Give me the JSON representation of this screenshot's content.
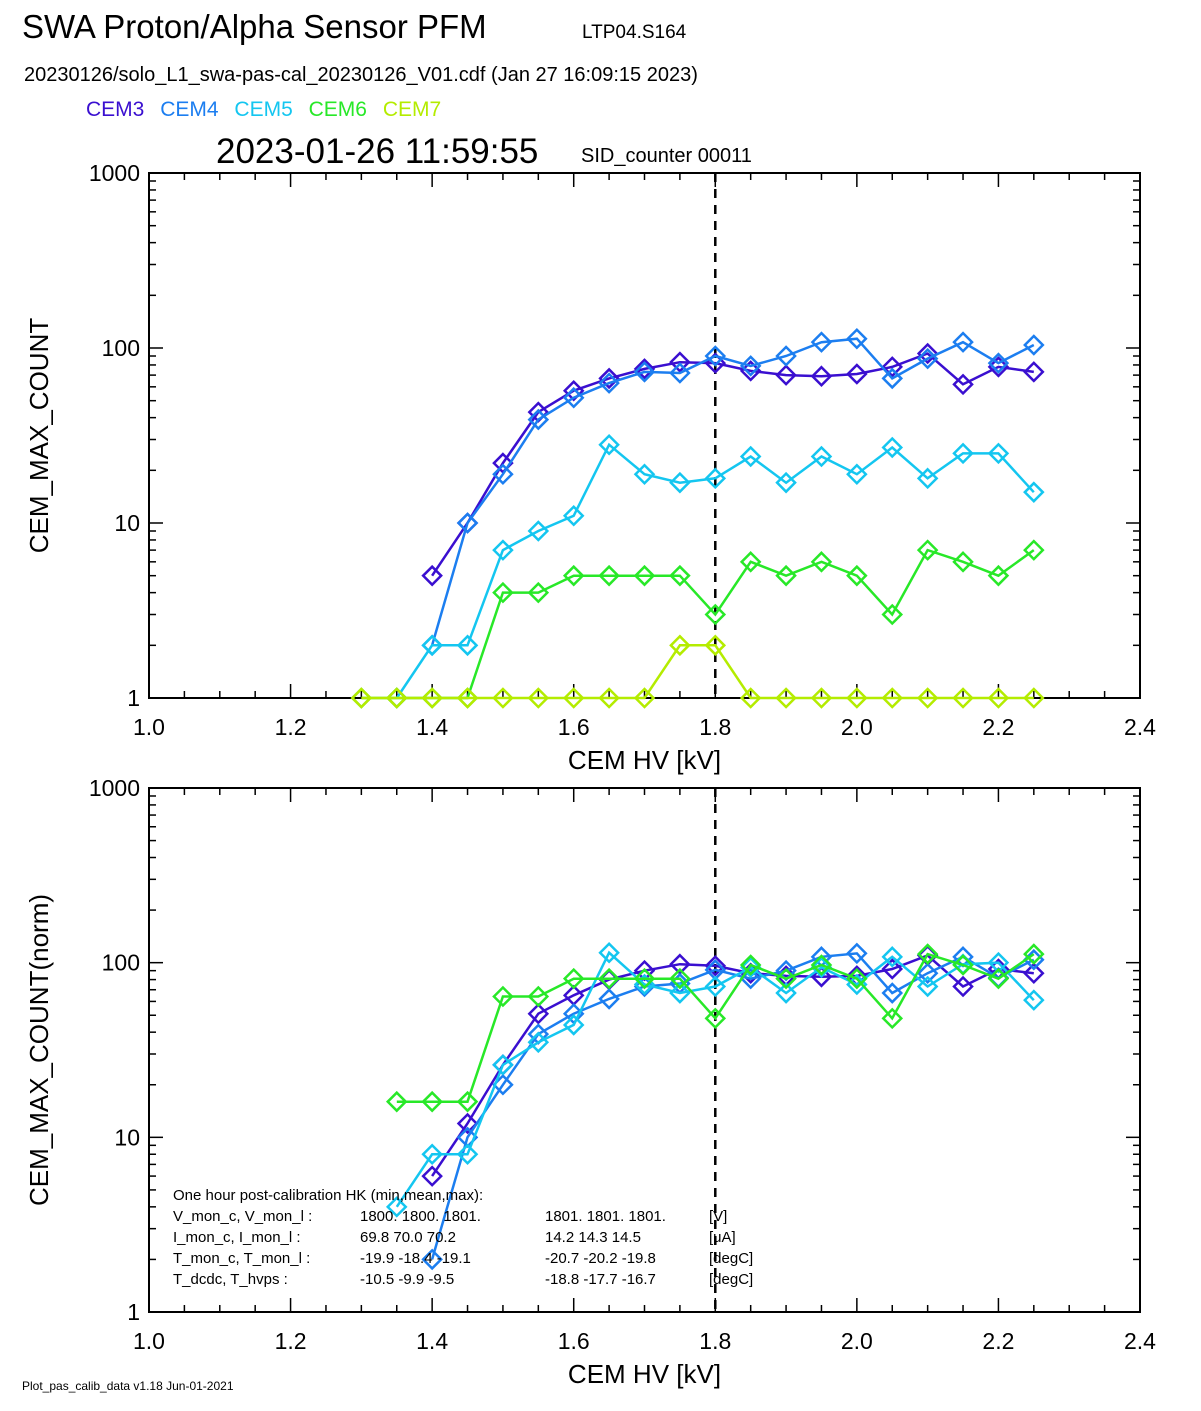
{
  "header": {
    "title": "SWA Proton/Alpha Sensor PFM",
    "run_id": "LTP04.S164",
    "file": "20230126/solo_L1_swa-pas-cal_20230126_V01.cdf  (Jan 27 16:09:15 2023)",
    "timestamp": "2023-01-26 11:59:55",
    "sid": "SID_counter 00011"
  },
  "legend": [
    {
      "label": "CEM3",
      "color": "#3a0fd0"
    },
    {
      "label": "CEM4",
      "color": "#1c7ef0"
    },
    {
      "label": "CEM5",
      "color": "#14c6f0"
    },
    {
      "label": "CEM6",
      "color": "#28e828"
    },
    {
      "label": "CEM7",
      "color": "#b4ec00"
    }
  ],
  "hk": {
    "title": "One hour post-calibration HK (min,mean,max):",
    "rows": [
      {
        "name": "V_mon_c, V_mon_l :",
        "a": "1800.  1800.  1801.",
        "b": "1801.  1801.  1801.",
        "unit": "[V]"
      },
      {
        "name": "I_mon_c,  I_mon_l :",
        "a": "69.8   70.0   70.2",
        "b": "14.2   14.3   14.5",
        "unit": "[uA]"
      },
      {
        "name": "T_mon_c, T_mon_l :",
        "a": "-19.9  -18.4  -19.1",
        "b": "-20.7  -20.2  -19.8",
        "unit": "[degC]"
      },
      {
        "name": "T_dcdc,    T_hvps :",
        "a": "-10.5   -9.9   -9.5",
        "b": "-18.8  -17.7  -16.7",
        "unit": "[degC]"
      }
    ]
  },
  "footer": "Plot_pas_calib_data v1.18 Jun-01-2021",
  "chart_data": [
    {
      "type": "line",
      "xlabel": "CEM HV [kV]",
      "ylabel": "CEM_MAX_COUNT",
      "xlim": [
        1.0,
        2.4
      ],
      "ylim": [
        1,
        1000
      ],
      "yscale": "log",
      "xticks": [
        "1.0",
        "1.2",
        "1.4",
        "1.6",
        "1.8",
        "2.0",
        "2.2",
        "2.4"
      ],
      "yticks": [
        "1",
        "10",
        "100",
        "1000"
      ],
      "vline": 1.8,
      "marker": "diamond",
      "x": [
        1.3,
        1.35,
        1.4,
        1.45,
        1.5,
        1.55,
        1.6,
        1.65,
        1.7,
        1.75,
        1.8,
        1.85,
        1.9,
        1.95,
        2.0,
        2.05,
        2.1,
        2.15,
        2.2,
        2.25
      ],
      "series": [
        {
          "name": "CEM3",
          "values": [
            null,
            null,
            5,
            10,
            22,
            43,
            57,
            67,
            76,
            83,
            82,
            74,
            70,
            69,
            71,
            78,
            93,
            62,
            78,
            73
          ]
        },
        {
          "name": "CEM4",
          "values": [
            null,
            null,
            2,
            10,
            19,
            39,
            52,
            63,
            73,
            72,
            90,
            79,
            90,
            108,
            113,
            67,
            87,
            108,
            82,
            104
          ]
        },
        {
          "name": "CEM5",
          "values": [
            null,
            1,
            2,
            2,
            7,
            9,
            11,
            28,
            19,
            17,
            18,
            24,
            17,
            24,
            19,
            27,
            18,
            25,
            25,
            15
          ]
        },
        {
          "name": "CEM6",
          "values": [
            1,
            1,
            1,
            1,
            4,
            4,
            5,
            5,
            5,
            5,
            3,
            6,
            5,
            6,
            5,
            3,
            7,
            6,
            5,
            7
          ]
        },
        {
          "name": "CEM7",
          "values": [
            1,
            1,
            1,
            1,
            1,
            1,
            1,
            1,
            1,
            2,
            2,
            1,
            1,
            1,
            1,
            1,
            1,
            1,
            1,
            1
          ]
        }
      ]
    },
    {
      "type": "line",
      "xlabel": "CEM HV [kV]",
      "ylabel": "CEM_MAX_COUNT(norm)",
      "xlim": [
        1.0,
        2.4
      ],
      "ylim": [
        1,
        1000
      ],
      "yscale": "log",
      "xticks": [
        "1.0",
        "1.2",
        "1.4",
        "1.6",
        "1.8",
        "2.0",
        "2.2",
        "2.4"
      ],
      "yticks": [
        "1",
        "10",
        "100",
        "1000"
      ],
      "vline": 1.8,
      "marker": "diamond",
      "x": [
        1.35,
        1.4,
        1.45,
        1.5,
        1.55,
        1.6,
        1.65,
        1.7,
        1.75,
        1.8,
        1.85,
        1.9,
        1.95,
        2.0,
        2.05,
        2.1,
        2.15,
        2.2,
        2.25
      ],
      "series": [
        {
          "name": "CEM3",
          "values": [
            null,
            6,
            12,
            26,
            51,
            65,
            80,
            90,
            98,
            96,
            87,
            84,
            83,
            84,
            92,
            110,
            73,
            92,
            87
          ]
        },
        {
          "name": "CEM4",
          "values": [
            null,
            2,
            10,
            20,
            39,
            51,
            62,
            73,
            76,
            91,
            81,
            90,
            108,
            113,
            67,
            87,
            108,
            82,
            104
          ]
        },
        {
          "name": "CEM5",
          "values": [
            4,
            8,
            8,
            26,
            35,
            44,
            114,
            75,
            67,
            73,
            94,
            67,
            94,
            75,
            108,
            73,
            98,
            100,
            61
          ]
        },
        {
          "name": "CEM6",
          "values": [
            16,
            16,
            16,
            64,
            64,
            81,
            81,
            81,
            81,
            48,
            97,
            81,
            97,
            81,
            48,
            112,
            97,
            81,
            112
          ]
        }
      ]
    }
  ]
}
